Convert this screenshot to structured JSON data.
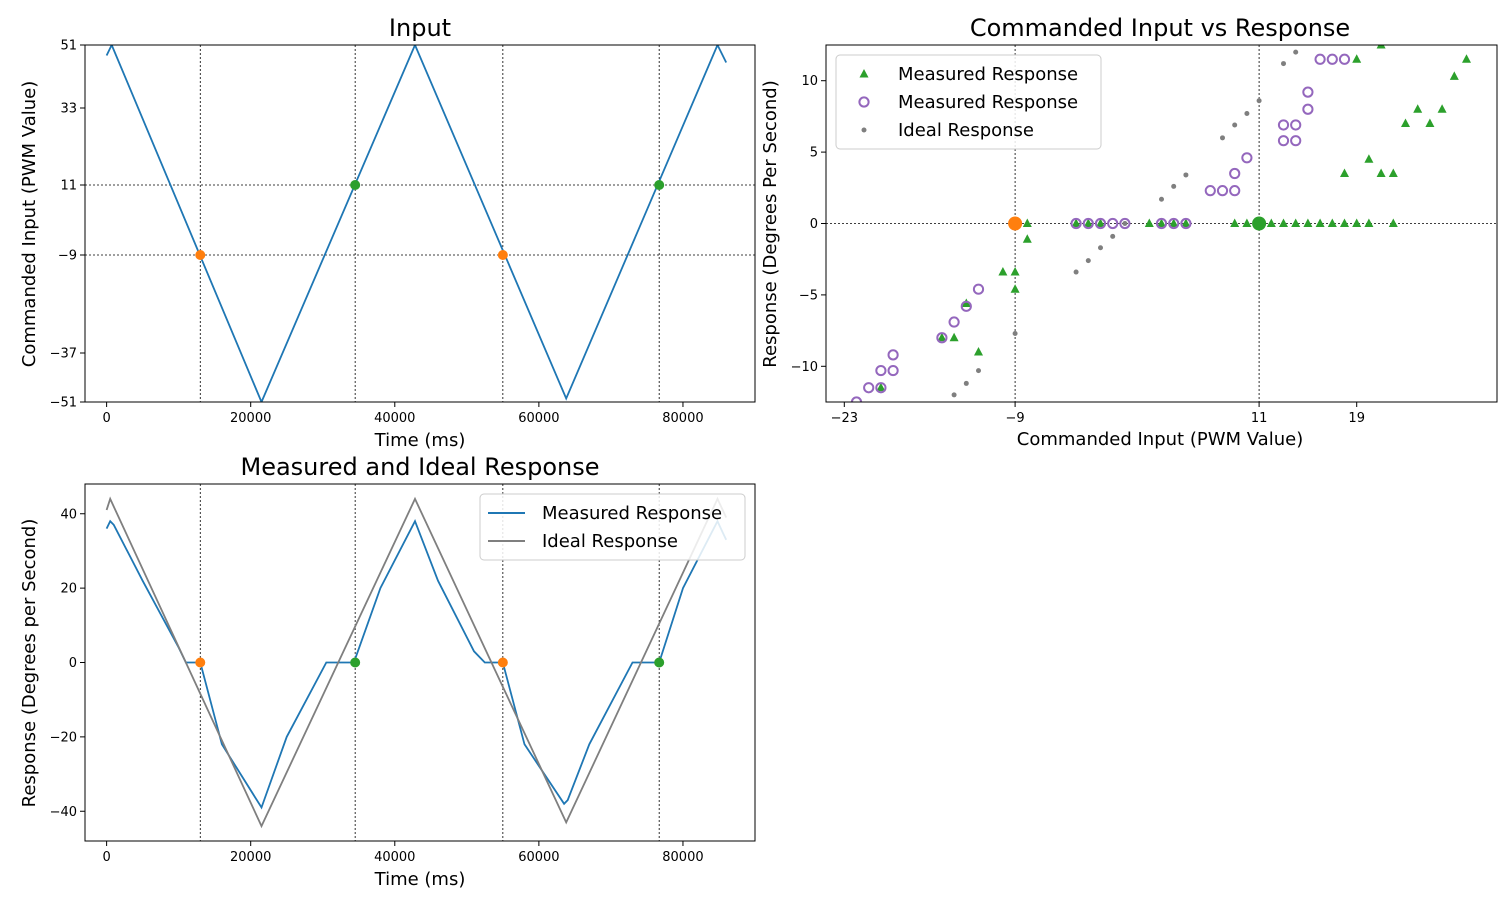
{
  "colors": {
    "line_blue": "#1f77b4",
    "orange": "#ff7f0e",
    "green": "#2ca02c",
    "purple": "#9467bd",
    "gray": "#7f7f7f"
  },
  "chart_data": [
    {
      "type": "line",
      "title": "Input",
      "xlabel": "Time (ms)",
      "ylabel": "Commanded Input (PWM Value)",
      "xlim": [
        -3000,
        90000
      ],
      "ylim": [
        -51,
        51
      ],
      "xticks": [
        0,
        20000,
        40000,
        60000,
        80000
      ],
      "xtick_labels": [
        "0",
        "20000",
        "40000",
        "60000",
        "80000"
      ],
      "yticks": [
        -51,
        -37,
        -9,
        11,
        33,
        51
      ],
      "ytick_labels": [
        "−51",
        "−37",
        "−9",
        "11",
        "33",
        "51"
      ],
      "vlines_x": [
        13000,
        34500,
        55000,
        76700
      ],
      "hlines_y": [
        11,
        -9
      ],
      "series": [
        {
          "x": [
            0,
            700,
            21500,
            42800,
            63800,
            84800,
            86000
          ],
          "y": [
            48,
            51,
            -51,
            51,
            -50,
            51,
            46
          ]
        }
      ],
      "markers": [
        {
          "x": 13000,
          "y": -9,
          "color": "orange"
        },
        {
          "x": 34500,
          "y": 11,
          "color": "green"
        },
        {
          "x": 55000,
          "y": -9,
          "color": "orange"
        },
        {
          "x": 76700,
          "y": 11,
          "color": "green"
        }
      ]
    },
    {
      "type": "scatter",
      "title": "Commanded Input vs Response",
      "xlabel": "Commanded Input (PWM Value)",
      "ylabel": "Response (Degrees Per Second)",
      "xlim": [
        -24.5,
        30.5
      ],
      "ylim": [
        -12.5,
        12.5
      ],
      "xticks": [
        -23,
        -9,
        11,
        19
      ],
      "xtick_labels": [
        "−23",
        "−9",
        "11",
        "19"
      ],
      "yticks": [
        -10,
        -5,
        0,
        5,
        10
      ],
      "ytick_labels": [
        "−10",
        "−5",
        "0",
        "5",
        "10"
      ],
      "vlines_x": [
        -9,
        11
      ],
      "hlines_y": [
        0
      ],
      "legend": {
        "position": "upper-left",
        "entries": [
          "Measured Response",
          "Measured Response",
          "Ideal Response"
        ]
      },
      "series": [
        {
          "name": "Measured Response",
          "marker": "triangle",
          "color": "green",
          "points": [
            [
              -20,
              -11.5
            ],
            [
              -15,
              -8
            ],
            [
              -14,
              -8
            ],
            [
              -13,
              -5.6
            ],
            [
              -12,
              -9
            ],
            [
              -10,
              -3.4
            ],
            [
              -9,
              -3.4
            ],
            [
              -9,
              -4.6
            ],
            [
              -8,
              0
            ],
            [
              -8,
              -1.1
            ],
            [
              -4,
              0
            ],
            [
              -3,
              0
            ],
            [
              -2,
              0
            ],
            [
              2,
              0
            ],
            [
              3,
              0
            ],
            [
              4,
              0
            ],
            [
              5,
              0
            ],
            [
              9,
              0
            ],
            [
              10,
              0
            ],
            [
              11,
              0
            ],
            [
              12,
              0
            ],
            [
              13,
              0
            ],
            [
              14,
              0
            ],
            [
              15,
              0
            ],
            [
              16,
              0
            ],
            [
              17,
              0
            ],
            [
              18,
              0
            ],
            [
              18,
              3.5
            ],
            [
              19,
              0
            ],
            [
              20,
              0
            ],
            [
              20,
              4.5
            ],
            [
              21,
              3.5
            ],
            [
              22,
              0
            ],
            [
              22,
              3.5
            ],
            [
              23,
              7
            ],
            [
              24,
              8
            ],
            [
              25,
              7
            ],
            [
              26,
              8
            ],
            [
              27,
              10.3
            ],
            [
              28,
              11.5
            ],
            [
              19,
              11.5
            ],
            [
              21,
              12.5
            ]
          ]
        },
        {
          "name": "Measured Response",
          "marker": "circle-open",
          "color": "purple",
          "points": [
            [
              -22,
              -12.5
            ],
            [
              -21,
              -11.5
            ],
            [
              -20,
              -10.3
            ],
            [
              -20,
              -11.5
            ],
            [
              -19,
              -9.2
            ],
            [
              -19,
              -10.3
            ],
            [
              -15,
              -8
            ],
            [
              -14,
              -6.9
            ],
            [
              -13,
              -5.8
            ],
            [
              -12,
              -4.6
            ],
            [
              -4,
              0
            ],
            [
              -3,
              0
            ],
            [
              -2,
              0
            ],
            [
              -1,
              0
            ],
            [
              0,
              0
            ],
            [
              3,
              0
            ],
            [
              4,
              0
            ],
            [
              5,
              0
            ],
            [
              7,
              2.3
            ],
            [
              8,
              2.3
            ],
            [
              9,
              2.3
            ],
            [
              9,
              3.5
            ],
            [
              10,
              4.6
            ],
            [
              13,
              5.8
            ],
            [
              13,
              6.9
            ],
            [
              14,
              5.8
            ],
            [
              14,
              6.9
            ],
            [
              15,
              8
            ],
            [
              15,
              9.2
            ],
            [
              16,
              11.5
            ],
            [
              17,
              11.5
            ],
            [
              18,
              11.5
            ]
          ]
        },
        {
          "name": "Ideal Response",
          "marker": "dot",
          "color": "gray",
          "points": [
            [
              -14,
              -12
            ],
            [
              -13,
              -11.2
            ],
            [
              -12,
              -10.3
            ],
            [
              -9,
              -7.7
            ],
            [
              -4,
              -3.4
            ],
            [
              -3,
              -2.6
            ],
            [
              -2,
              -1.7
            ],
            [
              -1,
              -0.9
            ],
            [
              0,
              0
            ],
            [
              3,
              1.7
            ],
            [
              4,
              2.6
            ],
            [
              5,
              3.4
            ],
            [
              8,
              6
            ],
            [
              9,
              6.9
            ],
            [
              10,
              7.7
            ],
            [
              11,
              8.6
            ],
            [
              13,
              11.2
            ],
            [
              14,
              12
            ]
          ]
        }
      ],
      "markers": [
        {
          "x": -9,
          "y": 0,
          "color": "orange"
        },
        {
          "x": 11,
          "y": 0,
          "color": "green"
        }
      ]
    },
    {
      "type": "line",
      "title": "Measured and Ideal Response",
      "xlabel": "Time (ms)",
      "ylabel": "Response (Degrees per Second)",
      "xlim": [
        -3000,
        90000
      ],
      "ylim": [
        -48,
        48
      ],
      "xticks": [
        0,
        20000,
        40000,
        60000,
        80000
      ],
      "xtick_labels": [
        "0",
        "20000",
        "40000",
        "60000",
        "80000"
      ],
      "yticks": [
        -40,
        -20,
        0,
        20,
        40
      ],
      "ytick_labels": [
        "−40",
        "−20",
        "0",
        "20",
        "40"
      ],
      "vlines_x": [
        13000,
        34500,
        55000,
        76700
      ],
      "legend": {
        "position": "upper-right",
        "entries": [
          "Measured Response",
          "Ideal Response"
        ]
      },
      "series": [
        {
          "name": "Measured Response",
          "color": "line_blue",
          "x": [
            0,
            500,
            1000,
            5000,
            10000,
            11000,
            13000,
            16000,
            21500,
            25000,
            30500,
            34300,
            34500,
            38000,
            42800,
            46000,
            51000,
            52500,
            55000,
            58000,
            63500,
            64000,
            67000,
            73000,
            76700,
            80000,
            84800,
            85500,
            86000
          ],
          "y": [
            36,
            38,
            37,
            22,
            4,
            0,
            0,
            -22,
            -39,
            -20,
            0,
            0,
            1,
            20,
            38,
            22,
            3,
            0,
            0,
            -22,
            -38,
            -37,
            -22,
            0,
            0,
            20,
            38,
            35,
            33
          ]
        },
        {
          "name": "Ideal Response",
          "color": "gray",
          "x": [
            0,
            500,
            21500,
            42800,
            63800,
            84800,
            86000
          ],
          "y": [
            41,
            44,
            -44,
            44,
            -43,
            44,
            39
          ]
        }
      ],
      "markers": [
        {
          "x": 13000,
          "y": 0,
          "color": "orange"
        },
        {
          "x": 34500,
          "y": 0,
          "color": "green"
        },
        {
          "x": 55000,
          "y": 0,
          "color": "orange"
        },
        {
          "x": 76700,
          "y": 0,
          "color": "green"
        }
      ]
    }
  ]
}
